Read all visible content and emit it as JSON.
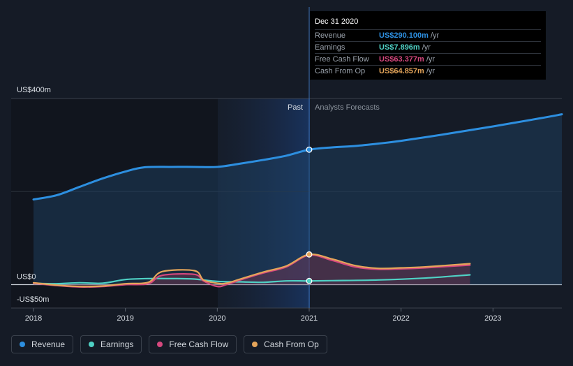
{
  "chart_data": {
    "type": "area",
    "y_axis_labels": [
      "US$400m",
      "US$0",
      "-US$50m"
    ],
    "ylim": [
      -50,
      400
    ],
    "x_ticks": [
      "2018",
      "2019",
      "2020",
      "2021",
      "2022",
      "2023"
    ],
    "xlim": [
      2017.9,
      2023.75
    ],
    "past_label": "Past",
    "forecast_label": "Analysts Forecasts",
    "divider_x": 2021.0,
    "series": [
      {
        "name": "Revenue",
        "color": "#2d8fe0",
        "fill": true,
        "points": [
          [
            2018.0,
            183
          ],
          [
            2018.25,
            192
          ],
          [
            2018.5,
            210
          ],
          [
            2018.75,
            228
          ],
          [
            2019.0,
            243
          ],
          [
            2019.2,
            252
          ],
          [
            2019.5,
            253
          ],
          [
            2019.75,
            253
          ],
          [
            2020.0,
            253
          ],
          [
            2020.25,
            260
          ],
          [
            2020.5,
            268
          ],
          [
            2020.75,
            277
          ],
          [
            2021.0,
            290
          ],
          [
            2021.25,
            295
          ],
          [
            2021.5,
            298
          ],
          [
            2021.75,
            303
          ],
          [
            2022.0,
            309
          ],
          [
            2022.5,
            324
          ],
          [
            2023.0,
            340
          ],
          [
            2023.5,
            357
          ],
          [
            2023.75,
            366
          ]
        ]
      },
      {
        "name": "Earnings",
        "color": "#4fd1c5",
        "fill": false,
        "points": [
          [
            2018.0,
            3
          ],
          [
            2018.25,
            2
          ],
          [
            2018.5,
            4
          ],
          [
            2018.75,
            3
          ],
          [
            2019.0,
            11
          ],
          [
            2019.25,
            13
          ],
          [
            2019.5,
            13
          ],
          [
            2019.75,
            12
          ],
          [
            2020.0,
            7
          ],
          [
            2020.25,
            6
          ],
          [
            2020.5,
            5
          ],
          [
            2020.75,
            8
          ],
          [
            2021.0,
            7.9
          ],
          [
            2021.25,
            8.5
          ],
          [
            2021.75,
            10
          ],
          [
            2022.25,
            14
          ],
          [
            2022.75,
            21
          ]
        ]
      },
      {
        "name": "Free Cash Flow",
        "color": "#d6487e",
        "fill": true,
        "points": [
          [
            2018.0,
            3
          ],
          [
            2018.25,
            -2
          ],
          [
            2018.5,
            -5
          ],
          [
            2018.75,
            -4
          ],
          [
            2019.0,
            0
          ],
          [
            2019.25,
            2
          ],
          [
            2019.4,
            20
          ],
          [
            2019.75,
            22
          ],
          [
            2019.85,
            8
          ],
          [
            2020.0,
            -4
          ],
          [
            2020.1,
            0
          ],
          [
            2020.25,
            10
          ],
          [
            2020.5,
            25
          ],
          [
            2020.75,
            38
          ],
          [
            2021.0,
            63.4
          ],
          [
            2021.25,
            52
          ],
          [
            2021.5,
            38
          ],
          [
            2021.75,
            33
          ],
          [
            2022.0,
            34
          ],
          [
            2022.25,
            36
          ],
          [
            2022.75,
            42
          ]
        ]
      },
      {
        "name": "Cash From Op",
        "color": "#e5a55a",
        "fill": false,
        "points": [
          [
            2018.0,
            4
          ],
          [
            2018.25,
            -1
          ],
          [
            2018.5,
            -4
          ],
          [
            2018.75,
            -3
          ],
          [
            2019.0,
            2
          ],
          [
            2019.25,
            5
          ],
          [
            2019.4,
            28
          ],
          [
            2019.75,
            30
          ],
          [
            2019.85,
            10
          ],
          [
            2020.0,
            3
          ],
          [
            2020.1,
            3
          ],
          [
            2020.25,
            12
          ],
          [
            2020.5,
            27
          ],
          [
            2020.75,
            40
          ],
          [
            2021.0,
            64.9
          ],
          [
            2021.25,
            55
          ],
          [
            2021.5,
            41
          ],
          [
            2021.75,
            35
          ],
          [
            2022.0,
            36
          ],
          [
            2022.25,
            38
          ],
          [
            2022.75,
            45
          ]
        ]
      }
    ],
    "highlight_x": 2021.0
  },
  "tooltip": {
    "date": "Dec 31 2020",
    "rows": [
      {
        "label": "Revenue",
        "value": "US$290.100m",
        "unit": "/yr",
        "color": "#2d8fe0"
      },
      {
        "label": "Earnings",
        "value": "US$7.896m",
        "unit": "/yr",
        "color": "#4fd1c5"
      },
      {
        "label": "Free Cash Flow",
        "value": "US$63.377m",
        "unit": "/yr",
        "color": "#d6487e"
      },
      {
        "label": "Cash From Op",
        "value": "US$64.857m",
        "unit": "/yr",
        "color": "#e5a55a"
      }
    ]
  },
  "legend": [
    {
      "label": "Revenue",
      "color": "#2d8fe0"
    },
    {
      "label": "Earnings",
      "color": "#4fd1c5"
    },
    {
      "label": "Free Cash Flow",
      "color": "#d6487e"
    },
    {
      "label": "Cash From Op",
      "color": "#e5a55a"
    }
  ]
}
